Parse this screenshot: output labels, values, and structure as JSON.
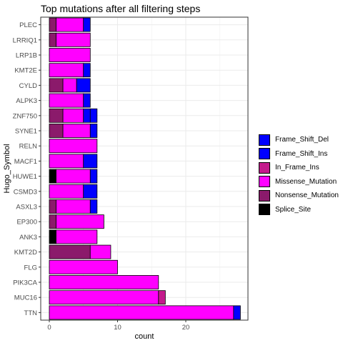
{
  "chart_data": {
    "type": "bar",
    "orientation": "horizontal",
    "stacked": true,
    "title": "Top mutations after all filtering steps",
    "xlabel": "count",
    "ylabel": "Hugo_Symbol",
    "xlim": [
      0,
      28.5
    ],
    "xticks": [
      0,
      10,
      20
    ],
    "grid": true,
    "legend_position": "right",
    "categories": [
      "PLEC",
      "LRRIQ1",
      "LRP1B",
      "KMT2E",
      "CYLD",
      "ALPK3",
      "ZNF750",
      "SYNE1",
      "RELN",
      "MACF1",
      "HUWE1",
      "CSMD3",
      "ASXL3",
      "EP300",
      "ANK3",
      "KMT2D",
      "FLG",
      "PIK3CA",
      "MUC16",
      "TTN"
    ],
    "series": [
      {
        "name": "Splice_Site",
        "color": "#000000",
        "values": [
          0,
          0,
          0,
          0,
          0,
          0,
          0,
          0,
          0,
          0,
          1,
          0,
          0,
          0,
          1,
          0,
          0,
          0,
          0,
          0
        ]
      },
      {
        "name": "Nonsense_Mutation",
        "color": "#8B1A6B",
        "values": [
          1,
          1,
          0,
          0,
          2,
          0,
          2,
          2,
          0,
          0,
          0,
          0,
          1,
          1,
          0,
          6,
          0,
          0,
          0,
          0
        ]
      },
      {
        "name": "Missense_Mutation",
        "color": "#FF00FF",
        "values": [
          4,
          5,
          6,
          5,
          2,
          5,
          3,
          4,
          7,
          5,
          5,
          5,
          5,
          7,
          6,
          3,
          10,
          16,
          16,
          27
        ]
      },
      {
        "name": "In_Frame_Ins",
        "color": "#C41A8C",
        "values": [
          0,
          0,
          0,
          0,
          0,
          0,
          0,
          0,
          0,
          0,
          0,
          0,
          0,
          0,
          0,
          0,
          0,
          0,
          1,
          0
        ]
      },
      {
        "name": "Frame_Shift_Ins",
        "color": "#0000FF",
        "values": [
          1,
          0,
          0,
          1,
          2,
          1,
          1,
          1,
          0,
          2,
          1,
          2,
          1,
          0,
          0,
          0,
          0,
          0,
          0,
          1
        ]
      },
      {
        "name": "Frame_Shift_Del",
        "color": "#0000FF",
        "values": [
          0,
          0,
          0,
          0,
          0,
          0,
          1,
          0,
          0,
          0,
          0,
          0,
          0,
          0,
          0,
          0,
          0,
          0,
          0,
          0
        ]
      }
    ],
    "legend_order": [
      "Frame_Shift_Del",
      "Frame_Shift_Ins",
      "In_Frame_Ins",
      "Missense_Mutation",
      "Nonsense_Mutation",
      "Splice_Site"
    ]
  }
}
